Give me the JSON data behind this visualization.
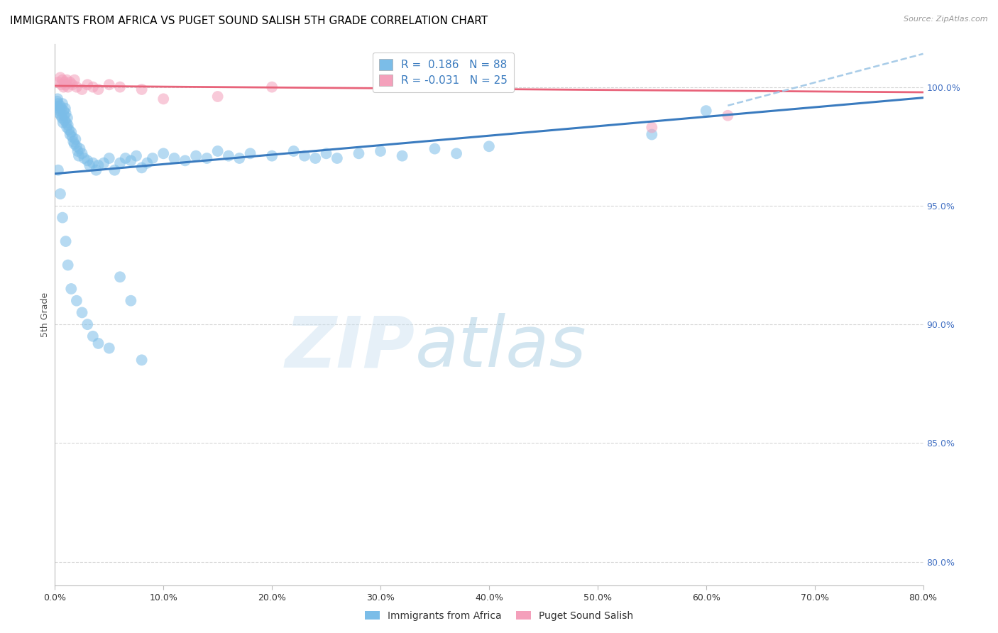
{
  "title": "IMMIGRANTS FROM AFRICA VS PUGET SOUND SALISH 5TH GRADE CORRELATION CHART",
  "source": "Source: ZipAtlas.com",
  "ylabel": "5th Grade",
  "xlim": [
    0.0,
    80.0
  ],
  "ylim": [
    79.0,
    101.8
  ],
  "xtick_vals": [
    0.0,
    10.0,
    20.0,
    30.0,
    40.0,
    50.0,
    60.0,
    70.0,
    80.0
  ],
  "xtick_labels": [
    "0.0%",
    "10.0%",
    "20.0%",
    "30.0%",
    "40.0%",
    "50.0%",
    "60.0%",
    "70.0%",
    "80.0%"
  ],
  "ytick_vals": [
    80.0,
    85.0,
    90.0,
    95.0,
    100.0
  ],
  "ytick_labels": [
    "80.0%",
    "85.0%",
    "90.0%",
    "95.0%",
    "100.0%"
  ],
  "blue_R": 0.186,
  "blue_N": 88,
  "pink_R": -0.031,
  "pink_N": 25,
  "blue_color": "#7bbde8",
  "pink_color": "#f4a0bb",
  "blue_line_color": "#3a7bbf",
  "pink_line_color": "#e8637a",
  "blue_dashed_color": "#a8cce8",
  "legend_blue_label": "Immigrants from Africa",
  "legend_pink_label": "Puget Sound Salish",
  "watermark_zip": "ZIP",
  "watermark_atlas": "atlas",
  "background_color": "#ffffff",
  "grid_color": "#cccccc",
  "title_fontsize": 11,
  "axis_label_fontsize": 9,
  "tick_fontsize": 9,
  "blue_scatter_x": [
    0.15,
    0.2,
    0.25,
    0.3,
    0.35,
    0.4,
    0.45,
    0.5,
    0.55,
    0.6,
    0.65,
    0.7,
    0.75,
    0.8,
    0.85,
    0.9,
    0.95,
    1.0,
    1.05,
    1.1,
    1.15,
    1.2,
    1.3,
    1.4,
    1.5,
    1.6,
    1.7,
    1.8,
    1.9,
    2.0,
    2.1,
    2.2,
    2.3,
    2.5,
    2.7,
    3.0,
    3.2,
    3.5,
    3.8,
    4.0,
    4.5,
    5.0,
    5.5,
    6.0,
    6.5,
    7.0,
    7.5,
    8.0,
    8.5,
    9.0,
    10.0,
    11.0,
    12.0,
    13.0,
    14.0,
    15.0,
    16.0,
    17.0,
    18.0,
    20.0,
    22.0,
    23.0,
    24.0,
    25.0,
    26.0,
    28.0,
    30.0,
    32.0,
    35.0,
    37.0,
    40.0,
    55.0,
    60.0,
    0.3,
    0.5,
    0.7,
    1.0,
    1.2,
    1.5,
    2.0,
    2.5,
    3.0,
    3.5,
    4.0,
    5.0,
    6.0,
    7.0,
    8.0
  ],
  "blue_scatter_y": [
    99.2,
    99.4,
    99.5,
    99.3,
    99.1,
    98.9,
    99.0,
    99.2,
    98.8,
    99.1,
    98.7,
    99.3,
    98.5,
    99.0,
    98.8,
    98.6,
    99.1,
    98.9,
    98.5,
    98.3,
    98.7,
    98.4,
    98.2,
    98.0,
    98.1,
    97.9,
    97.7,
    97.6,
    97.8,
    97.5,
    97.3,
    97.1,
    97.4,
    97.2,
    97.0,
    96.9,
    96.7,
    96.8,
    96.5,
    96.7,
    96.8,
    97.0,
    96.5,
    96.8,
    97.0,
    96.9,
    97.1,
    96.6,
    96.8,
    97.0,
    97.2,
    97.0,
    96.9,
    97.1,
    97.0,
    97.3,
    97.1,
    97.0,
    97.2,
    97.1,
    97.3,
    97.1,
    97.0,
    97.2,
    97.0,
    97.2,
    97.3,
    97.1,
    97.4,
    97.2,
    97.5,
    98.0,
    99.0,
    96.5,
    95.5,
    94.5,
    93.5,
    92.5,
    91.5,
    91.0,
    90.5,
    90.0,
    89.5,
    89.2,
    89.0,
    92.0,
    91.0,
    88.5
  ],
  "pink_scatter_x": [
    0.3,
    0.5,
    0.6,
    0.7,
    0.8,
    0.9,
    1.0,
    1.1,
    1.2,
    1.4,
    1.6,
    1.8,
    2.0,
    2.5,
    3.0,
    3.5,
    4.0,
    5.0,
    6.0,
    8.0,
    10.0,
    15.0,
    20.0,
    55.0,
    62.0
  ],
  "pink_scatter_y": [
    100.2,
    100.4,
    100.1,
    100.3,
    100.0,
    100.2,
    100.1,
    100.3,
    100.0,
    100.2,
    100.1,
    100.3,
    100.0,
    99.9,
    100.1,
    100.0,
    99.9,
    100.1,
    100.0,
    99.9,
    99.5,
    99.6,
    100.0,
    98.3,
    98.8
  ],
  "blue_trend_x0": 0.0,
  "blue_trend_y0": 96.35,
  "blue_trend_x1": 80.0,
  "blue_trend_y1": 99.55,
  "pink_trend_x0": 0.0,
  "pink_trend_y0": 100.05,
  "pink_trend_x1": 80.0,
  "pink_trend_y1": 99.78,
  "blue_dash_x0": 62.0,
  "blue_dash_y0": 99.22,
  "blue_dash_x1": 80.0,
  "blue_dash_y1": 101.4
}
